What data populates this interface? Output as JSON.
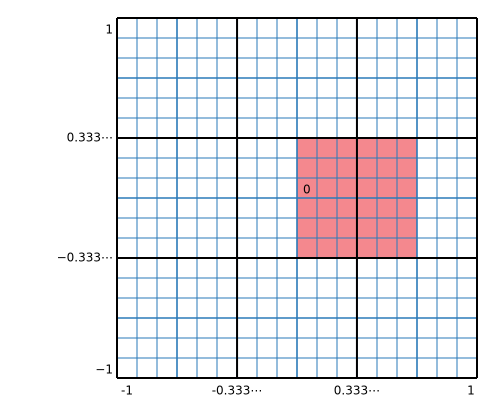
{
  "chart_data": {
    "type": "region",
    "xlim": [
      -1,
      1
    ],
    "ylim": [
      -1,
      1
    ],
    "xticks": [
      -1,
      {
        "value": -0.333,
        "label": "-0.333⋯"
      },
      {
        "value": 0.333,
        "label": "0.333⋯"
      },
      1
    ],
    "yticks": [
      {
        "value": -1,
        "label": "−1"
      },
      {
        "value": -0.333,
        "label": "−0.333⋯"
      },
      {
        "value": 0.333,
        "label": "0.333⋯"
      },
      1
    ],
    "grid": true,
    "region": {
      "x": [
        0,
        0.667
      ],
      "y": [
        -0.333,
        0.333
      ],
      "label": "0",
      "color": "#f4888e"
    }
  }
}
